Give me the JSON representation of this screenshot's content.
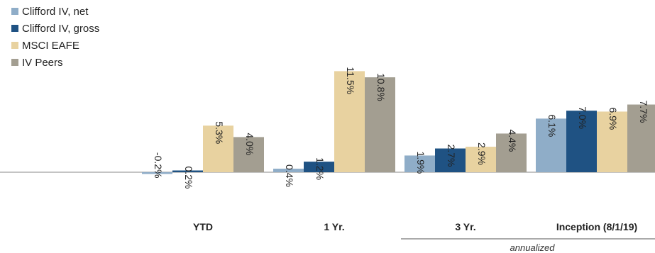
{
  "chart_data": {
    "type": "bar",
    "categories": [
      "YTD",
      "1 Yr.",
      "3 Yr.",
      "Inception (8/1/19)"
    ],
    "series": [
      {
        "name": "Clifford IV, net",
        "color": "#8fadc8",
        "values": [
          -0.2,
          0.4,
          1.9,
          6.1
        ],
        "labels": [
          "-0.2%",
          "0.4%",
          "1.9%",
          "6.1%"
        ]
      },
      {
        "name": "Clifford IV, gross",
        "color": "#1f5283",
        "values": [
          0.2,
          1.2,
          2.7,
          7.0
        ],
        "labels": [
          "0.2%",
          "1.2%",
          "2.7%",
          "7.0%"
        ]
      },
      {
        "name": "MSCI EAFE",
        "color": "#e8d2a0",
        "values": [
          5.3,
          11.5,
          2.9,
          6.9
        ],
        "labels": [
          "5.3%",
          "11.5%",
          "2.9%",
          "6.9%"
        ]
      },
      {
        "name": "IV Peers",
        "color": "#a39e91",
        "values": [
          4.0,
          10.8,
          4.4,
          7.7
        ],
        "labels": [
          "4.0%",
          "10.8%",
          "4.4%",
          "7.7%"
        ]
      }
    ],
    "annotation": "annualized",
    "legend_position": "top-left",
    "grid": false
  }
}
